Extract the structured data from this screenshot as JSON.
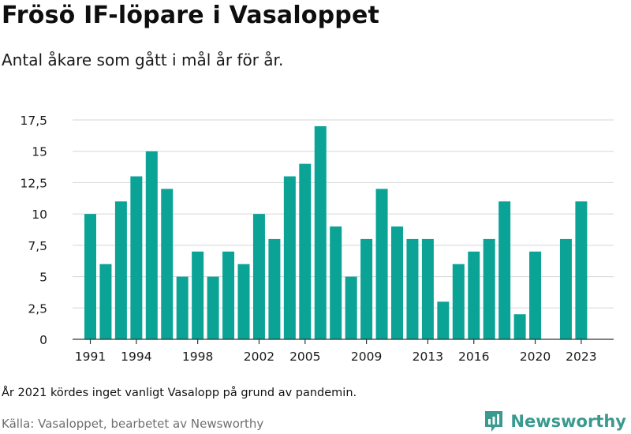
{
  "title": "Frösö IF-löpare i Vasaloppet",
  "subtitle": "Antal åkare som gått i mål år för år.",
  "note": "År 2021 kördes inget vanligt Vasalopp på grund av pandemin.",
  "source": "Källa: Vasaloppet, bearbetet av Newsworthy",
  "brand": {
    "name": "Newsworthy",
    "icon": "newsworthy-logo-icon",
    "color": "#3a9a8f"
  },
  "chart_data": {
    "type": "bar",
    "title": "Frösö IF-löpare i Vasaloppet",
    "subtitle": "Antal åkare som gått i mål år för år.",
    "categories": [
      1991,
      1992,
      1993,
      1994,
      1995,
      1996,
      1997,
      1998,
      1999,
      2000,
      2001,
      2002,
      2003,
      2004,
      2005,
      2006,
      2007,
      2008,
      2009,
      2010,
      2011,
      2012,
      2013,
      2014,
      2015,
      2016,
      2017,
      2018,
      2019,
      2020,
      2021,
      2022,
      2023
    ],
    "values": [
      10,
      6,
      11,
      13,
      15,
      12,
      5,
      7,
      5,
      7,
      6,
      10,
      8,
      13,
      14,
      17,
      9,
      5,
      8,
      12,
      9,
      8,
      8,
      3,
      6,
      7,
      8,
      11,
      2,
      7,
      null,
      8,
      11
    ],
    "x_tick_labels": [
      "1991",
      "1994",
      "1998",
      "2002",
      "2005",
      "2009",
      "2013",
      "2016",
      "2020",
      "2023"
    ],
    "y_tick_labels": [
      "0",
      "2,5",
      "5",
      "7,5",
      "10",
      "12,5",
      "15",
      "17,5"
    ],
    "y_ticks": [
      0,
      2.5,
      5,
      7.5,
      10,
      12.5,
      15,
      17.5
    ],
    "ylim": [
      0,
      17.5
    ],
    "xlabel": "",
    "ylabel": "",
    "bar_color": "#0aa396",
    "grid": true,
    "legend": "none"
  }
}
